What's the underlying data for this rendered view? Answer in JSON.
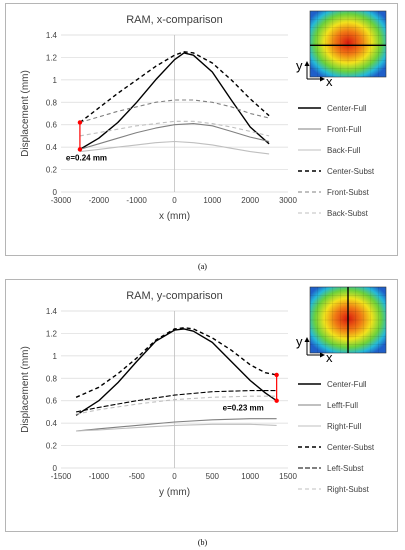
{
  "charts": [
    {
      "id": "a",
      "caption": "(a)",
      "chart_data": {
        "type": "line",
        "title": "RAM, x-comparison",
        "xlabel": "x (mm)",
        "ylabel": "Displacement (mm)",
        "xlim": [
          -3000,
          3000
        ],
        "ylim": [
          0,
          1.4
        ],
        "xticks": [
          -3000,
          -2000,
          -1000,
          0,
          1000,
          2000,
          3000
        ],
        "yticks": [
          0,
          0.2,
          0.4,
          0.6,
          0.8,
          1,
          1.2,
          1.4
        ],
        "grid": "horizontal",
        "legend_position": "right",
        "series": [
          {
            "name": "Center-Full",
            "color": "#000000",
            "dash": "solid",
            "width": 1.4,
            "x": [
              -2500,
              -2000,
              -1500,
              -1000,
              -500,
              0,
              250,
              500,
              1000,
              1500,
              2000,
              2500
            ],
            "y": [
              0.38,
              0.48,
              0.62,
              0.8,
              1.0,
              1.18,
              1.24,
              1.22,
              1.07,
              0.82,
              0.58,
              0.43
            ]
          },
          {
            "name": "Front-Full",
            "color": "#808080",
            "dash": "solid",
            "width": 1.1,
            "x": [
              -2500,
              -2000,
              -1500,
              -1000,
              -500,
              0,
              500,
              1000,
              1500,
              2000,
              2500
            ],
            "y": [
              0.38,
              0.43,
              0.48,
              0.53,
              0.57,
              0.6,
              0.61,
              0.59,
              0.54,
              0.49,
              0.45
            ]
          },
          {
            "name": "Back-Full",
            "color": "#bfbfbf",
            "dash": "solid",
            "width": 1.1,
            "x": [
              -2500,
              -2000,
              -1500,
              -1000,
              -500,
              0,
              500,
              1000,
              1500,
              2000,
              2500
            ],
            "y": [
              0.36,
              0.38,
              0.4,
              0.42,
              0.44,
              0.45,
              0.44,
              0.42,
              0.39,
              0.36,
              0.34
            ]
          },
          {
            "name": "Center-Subst",
            "color": "#000000",
            "dash": "4,3",
            "width": 1.4,
            "x": [
              -2500,
              -2000,
              -1500,
              -1000,
              -500,
              0,
              250,
              500,
              1000,
              1500,
              2000,
              2500
            ],
            "y": [
              0.62,
              0.75,
              0.88,
              1.0,
              1.12,
              1.22,
              1.25,
              1.24,
              1.15,
              1.0,
              0.83,
              0.68
            ]
          },
          {
            "name": "Front-Subst",
            "color": "#808080",
            "dash": "4,3",
            "width": 1.1,
            "x": [
              -2500,
              -2000,
              -1500,
              -1000,
              -500,
              0,
              500,
              1000,
              1500,
              2000,
              2500
            ],
            "y": [
              0.62,
              0.67,
              0.72,
              0.76,
              0.8,
              0.82,
              0.82,
              0.8,
              0.76,
              0.7,
              0.66
            ]
          },
          {
            "name": "Back-Subst",
            "color": "#bfbfbf",
            "dash": "4,3",
            "width": 1.1,
            "x": [
              -2500,
              -2000,
              -1500,
              -1000,
              -500,
              0,
              500,
              1000,
              1500,
              2000,
              2500
            ],
            "y": [
              0.5,
              0.53,
              0.56,
              0.59,
              0.61,
              0.63,
              0.63,
              0.61,
              0.58,
              0.54,
              0.5
            ]
          }
        ],
        "annotation": {
          "text": "e=0.24 mm",
          "x": -2500,
          "y_from": 0.38,
          "y_to": 0.62,
          "color": "#ff0000"
        },
        "inset": {
          "axis_x": "x",
          "axis_y": "y",
          "divider": "horizontal"
        }
      }
    },
    {
      "id": "b",
      "caption": "(b)",
      "chart_data": {
        "type": "line",
        "title": "RAM, y-comparison",
        "xlabel": "y (mm)",
        "ylabel": "Displacement (mm)",
        "xlim": [
          -1500,
          1500
        ],
        "ylim": [
          0,
          1.4
        ],
        "xticks": [
          -1500,
          -1000,
          -500,
          0,
          500,
          1000,
          1500
        ],
        "yticks": [
          0,
          0.2,
          0.4,
          0.6,
          0.8,
          1,
          1.2,
          1.4
        ],
        "grid": "horizontal",
        "legend_position": "right",
        "series": [
          {
            "name": "Center-Full",
            "color": "#000000",
            "dash": "solid",
            "width": 1.4,
            "x": [
              -1300,
              -1000,
              -750,
              -500,
              -250,
              0,
              125,
              250,
              500,
              750,
              1000,
              1200,
              1350
            ],
            "y": [
              0.47,
              0.6,
              0.76,
              0.95,
              1.13,
              1.23,
              1.24,
              1.22,
              1.12,
              0.95,
              0.78,
              0.67,
              0.6
            ]
          },
          {
            "name": "Lefft-Full",
            "color": "#808080",
            "dash": "solid",
            "width": 1.1,
            "x": [
              -1300,
              -1000,
              -500,
              0,
              500,
              1000,
              1350
            ],
            "y": [
              0.33,
              0.35,
              0.38,
              0.41,
              0.43,
              0.44,
              0.44
            ]
          },
          {
            "name": "Right-Full",
            "color": "#bfbfbf",
            "dash": "solid",
            "width": 1.1,
            "x": [
              -1300,
              -1000,
              -500,
              0,
              500,
              1000,
              1350
            ],
            "y": [
              0.33,
              0.34,
              0.36,
              0.38,
              0.39,
              0.39,
              0.38
            ]
          },
          {
            "name": "Center-Subst",
            "color": "#000000",
            "dash": "4,3",
            "width": 1.4,
            "x": [
              -1300,
              -1000,
              -750,
              -500,
              -250,
              0,
              125,
              250,
              500,
              750,
              1000,
              1200,
              1350
            ],
            "y": [
              0.63,
              0.72,
              0.84,
              0.98,
              1.14,
              1.24,
              1.25,
              1.24,
              1.16,
              1.05,
              0.92,
              0.85,
              0.83
            ]
          },
          {
            "name": "Left-Subst",
            "color": "#000000",
            "dash": "5,2",
            "width": 1.1,
            "x": [
              -1300,
              -1000,
              -500,
              0,
              500,
              1000,
              1350
            ],
            "y": [
              0.5,
              0.54,
              0.6,
              0.65,
              0.68,
              0.69,
              0.69
            ]
          },
          {
            "name": "Right-Subst",
            "color": "#bfbfbf",
            "dash": "4,3",
            "width": 1.1,
            "x": [
              -1300,
              -1000,
              -500,
              0,
              500,
              1000,
              1350
            ],
            "y": [
              0.48,
              0.52,
              0.57,
              0.61,
              0.63,
              0.64,
              0.64
            ]
          }
        ],
        "annotation": {
          "text": "e=0.23 mm",
          "x": 1350,
          "y_from": 0.6,
          "y_to": 0.83,
          "color": "#ff0000"
        },
        "inset": {
          "axis_x": "x",
          "axis_y": "y",
          "divider": "vertical"
        }
      }
    }
  ]
}
